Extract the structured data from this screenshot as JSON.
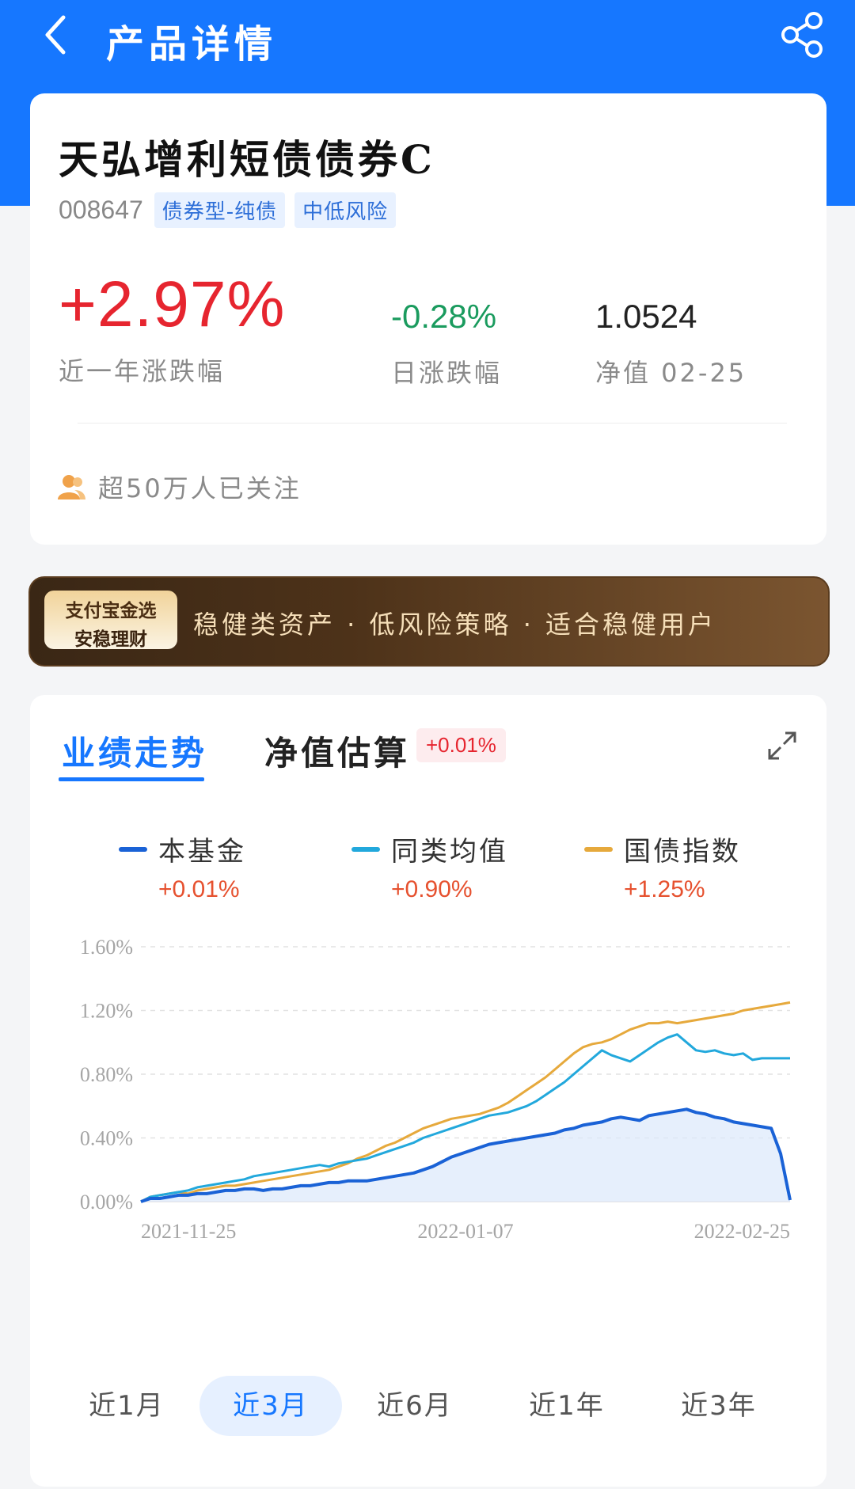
{
  "header": {
    "title": "产品详情",
    "back_icon": "chevron-left-icon",
    "share_icon": "share-icon"
  },
  "fund": {
    "name": "天弘增利短债债券C",
    "code": "008647",
    "tags": [
      "债券型-纯债",
      "中低风险"
    ],
    "year_change": "+2.97%",
    "year_change_label": "近一年涨跌幅",
    "day_change": "-0.28%",
    "day_change_label": "日涨跌幅",
    "nav": "1.0524",
    "nav_label": "净值 02-25",
    "followers": "超50万人已关注"
  },
  "banner": {
    "badge_top": "支付宝金选",
    "badge_bottom": "安稳理财",
    "text": "稳健类资产 · 低风险策略 · 适合稳健用户"
  },
  "performance": {
    "tab_active": "业绩走势",
    "tab_other": "净值估算",
    "estimate_badge": "+0.01%",
    "legend": [
      {
        "name": "本基金",
        "value": "+0.01%",
        "color": "#1a62d6"
      },
      {
        "name": "同类均值",
        "value": "+0.90%",
        "color": "#22a8dc"
      },
      {
        "name": "国债指数",
        "value": "+1.25%",
        "color": "#e6a93c"
      }
    ],
    "ranges": [
      "近1月",
      "近3月",
      "近6月",
      "近1年",
      "近3年"
    ],
    "active_range": "近3月"
  },
  "chart_data": {
    "type": "line",
    "x_labels": [
      "2021-11-25",
      "2022-01-07",
      "2022-02-25"
    ],
    "y_ticks": [
      "1.60%",
      "1.20%",
      "0.80%",
      "0.40%",
      "0.00%"
    ],
    "ylim": [
      0,
      1.6
    ],
    "grid": true,
    "series": [
      {
        "name": "本基金",
        "color": "#1a62d6",
        "values": [
          0.0,
          0.02,
          0.02,
          0.03,
          0.04,
          0.04,
          0.05,
          0.05,
          0.06,
          0.07,
          0.07,
          0.08,
          0.08,
          0.07,
          0.08,
          0.08,
          0.09,
          0.1,
          0.1,
          0.11,
          0.12,
          0.12,
          0.13,
          0.13,
          0.13,
          0.14,
          0.15,
          0.16,
          0.17,
          0.18,
          0.2,
          0.22,
          0.25,
          0.28,
          0.3,
          0.32,
          0.34,
          0.36,
          0.37,
          0.38,
          0.39,
          0.4,
          0.41,
          0.42,
          0.43,
          0.45,
          0.46,
          0.48,
          0.49,
          0.5,
          0.52,
          0.53,
          0.52,
          0.51,
          0.54,
          0.55,
          0.56,
          0.57,
          0.58,
          0.56,
          0.55,
          0.53,
          0.52,
          0.5,
          0.49,
          0.48,
          0.47,
          0.46,
          0.3,
          0.01
        ]
      },
      {
        "name": "同类均值",
        "color": "#22a8dc",
        "values": [
          0.0,
          0.03,
          0.04,
          0.05,
          0.06,
          0.07,
          0.09,
          0.1,
          0.11,
          0.12,
          0.13,
          0.14,
          0.16,
          0.17,
          0.18,
          0.19,
          0.2,
          0.21,
          0.22,
          0.23,
          0.22,
          0.24,
          0.25,
          0.26,
          0.27,
          0.29,
          0.31,
          0.33,
          0.35,
          0.37,
          0.4,
          0.42,
          0.44,
          0.46,
          0.48,
          0.5,
          0.52,
          0.54,
          0.55,
          0.56,
          0.58,
          0.6,
          0.63,
          0.67,
          0.71,
          0.75,
          0.8,
          0.85,
          0.9,
          0.95,
          0.92,
          0.9,
          0.88,
          0.92,
          0.96,
          1.0,
          1.03,
          1.05,
          1.0,
          0.95,
          0.94,
          0.95,
          0.93,
          0.92,
          0.93,
          0.89,
          0.9,
          0.9,
          0.9,
          0.9
        ]
      },
      {
        "name": "国债指数",
        "color": "#e6a93c",
        "values": [
          0.0,
          0.03,
          0.04,
          0.05,
          0.06,
          0.05,
          0.07,
          0.08,
          0.09,
          0.1,
          0.1,
          0.11,
          0.12,
          0.13,
          0.14,
          0.15,
          0.16,
          0.17,
          0.18,
          0.19,
          0.2,
          0.22,
          0.24,
          0.27,
          0.29,
          0.32,
          0.35,
          0.37,
          0.4,
          0.43,
          0.46,
          0.48,
          0.5,
          0.52,
          0.53,
          0.54,
          0.55,
          0.57,
          0.59,
          0.62,
          0.66,
          0.7,
          0.74,
          0.78,
          0.83,
          0.88,
          0.93,
          0.97,
          0.99,
          1.0,
          1.02,
          1.05,
          1.08,
          1.1,
          1.12,
          1.12,
          1.13,
          1.12,
          1.13,
          1.14,
          1.15,
          1.16,
          1.17,
          1.18,
          1.2,
          1.21,
          1.22,
          1.23,
          1.24,
          1.25
        ]
      }
    ]
  }
}
